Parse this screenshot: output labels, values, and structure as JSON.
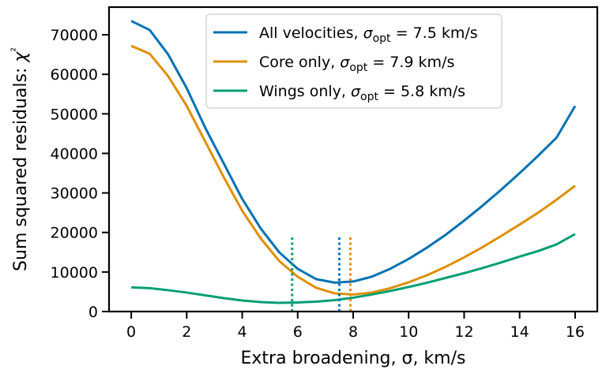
{
  "chart_data": {
    "type": "line",
    "xlabel": "Extra broadening, σ, km/s",
    "ylabel": "Sum squared residuals: χ²",
    "xlim": [
      -0.8,
      16.8
    ],
    "ylim": [
      0,
      77000
    ],
    "x_ticks": [
      0,
      2,
      4,
      6,
      8,
      10,
      12,
      14,
      16
    ],
    "y_ticks": [
      0,
      10000,
      20000,
      30000,
      40000,
      50000,
      60000,
      70000
    ],
    "legend_position": "top-center",
    "grid": false,
    "x": [
      0,
      0.667,
      1.333,
      2,
      2.667,
      3.333,
      4,
      4.667,
      5.333,
      6,
      6.667,
      7.333,
      8,
      8.667,
      9.333,
      10,
      10.667,
      11.333,
      12,
      12.667,
      13.333,
      14,
      14.667,
      15.333,
      16
    ],
    "series": [
      {
        "name": "All velocities, σ_opt = 7.5 km/s",
        "legend_prefix": "All velocities, ",
        "sigma_value": "7.5",
        "color": "#0072b2",
        "values": [
          73500,
          71200,
          65000,
          56500,
          46500,
          37500,
          28500,
          21000,
          15000,
          10800,
          8200,
          7300,
          7600,
          8800,
          10800,
          13300,
          16200,
          19400,
          23000,
          26800,
          30800,
          35000,
          39400,
          44000,
          52000
        ],
        "optimum_x": 7.5
      },
      {
        "name": "Core only, σ_opt = 7.9 km/s",
        "legend_prefix": "Core only, ",
        "sigma_value": "7.9",
        "color": "#de8f05",
        "values": [
          67200,
          65200,
          59500,
          52000,
          43000,
          34000,
          25500,
          18500,
          12800,
          8800,
          6000,
          4600,
          4300,
          4800,
          5900,
          7400,
          9200,
          11300,
          13700,
          16300,
          19100,
          22000,
          25000,
          28300,
          31800
        ],
        "optimum_x": 7.9
      },
      {
        "name": "Wings only, σ_opt = 5.8 km/s",
        "legend_prefix": "Wings only, ",
        "sigma_value": "5.8",
        "color": "#029e73",
        "values": [
          6100,
          5900,
          5400,
          4800,
          4100,
          3400,
          2800,
          2400,
          2200,
          2300,
          2500,
          2900,
          3500,
          4300,
          5200,
          6200,
          7300,
          8500,
          9700,
          11000,
          12400,
          13900,
          15300,
          17000,
          19600
        ],
        "optimum_x": 5.8
      }
    ],
    "vline_top": 19000
  }
}
